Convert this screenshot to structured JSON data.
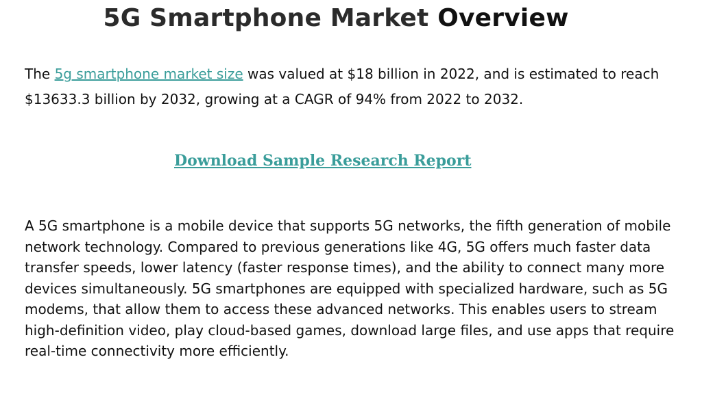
{
  "title": {
    "part1": "5G Smartphone Market",
    "part2": "Overview"
  },
  "intro": {
    "prefix": "The ",
    "link_text": "5g smartphone market size",
    "suffix": " was valued at $18 billion in 2022, and is estimated to reach $13633.3 billion by 2032, growing at a CAGR of 94% from 2022 to 2032."
  },
  "download_link": "Download Sample Research Report",
  "body": "A 5G smartphone is a mobile device that supports 5G networks, the fifth generation of mobile network technology. Compared to previous generations like 4G, 5G offers much faster data transfer speeds, lower latency (faster response times), and the ability to connect many more devices simultaneously. 5G smartphones are equipped with specialized hardware, such as 5G modems, that allow them to access these advanced networks. This enables users to stream high-definition video, play cloud-based games, download large files, and use apps that require real-time connectivity more efficiently.",
  "colors": {
    "link": "#3a9d9a",
    "text": "#111111"
  }
}
